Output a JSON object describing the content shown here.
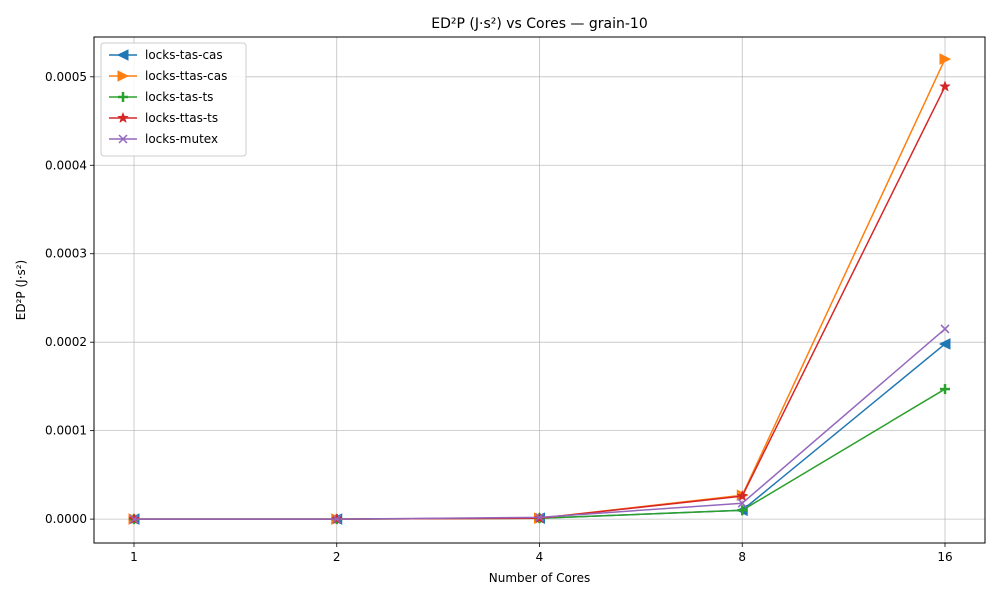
{
  "chart_data": {
    "type": "line",
    "title": "ED²P (J·s²) vs Cores — grain-10",
    "xlabel": "Number of Cores",
    "ylabel": "ED²P (J·s²)",
    "x": [
      1,
      2,
      4,
      8,
      16
    ],
    "x_tick_labels": [
      "1",
      "2",
      "4",
      "8",
      "16"
    ],
    "x_scale": "categorical-evenly-spaced",
    "ylim": [
      -2.7e-05,
      0.000545
    ],
    "y_ticks": [
      0.0,
      0.0001,
      0.0002,
      0.0003,
      0.0004,
      0.0005
    ],
    "y_tick_labels": [
      "0.0000",
      "0.0001",
      "0.0002",
      "0.0003",
      "0.0004",
      "0.0005"
    ],
    "grid": true,
    "legend_position": "top-left",
    "series": [
      {
        "name": "locks-tas-cas",
        "color": "#1f77b4",
        "marker": "triangle-left",
        "values": [
          0.0,
          0.0,
          1e-06,
          1e-05,
          0.000198
        ]
      },
      {
        "name": "locks-ttas-cas",
        "color": "#ff7f0e",
        "marker": "triangle-right",
        "values": [
          0.0,
          0.0,
          1e-06,
          2.7e-05,
          0.00052
        ]
      },
      {
        "name": "locks-tas-ts",
        "color": "#2ca02c",
        "marker": "plus",
        "values": [
          0.0,
          0.0,
          1e-06,
          1e-05,
          0.000147
        ]
      },
      {
        "name": "locks-ttas-ts",
        "color": "#d62728",
        "marker": "star",
        "values": [
          0.0,
          0.0,
          1e-06,
          2.6e-05,
          0.000489
        ]
      },
      {
        "name": "locks-mutex",
        "color": "#9467bd",
        "marker": "x",
        "values": [
          0.0,
          0.0,
          2e-06,
          1.8e-05,
          0.000215
        ]
      }
    ]
  }
}
